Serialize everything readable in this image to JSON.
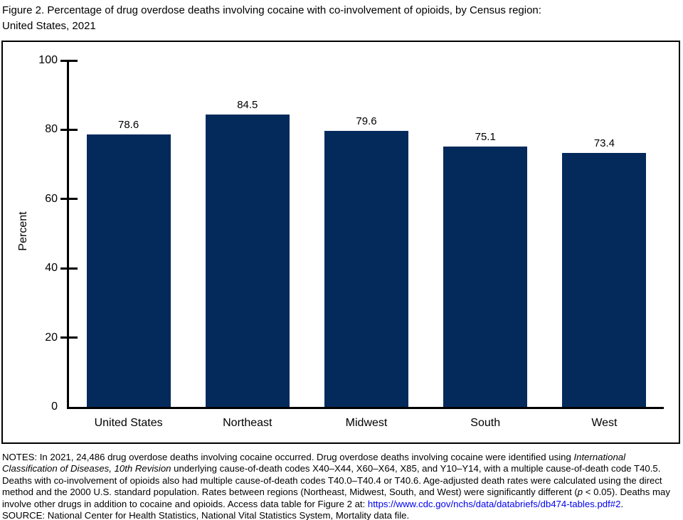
{
  "title": {
    "line1": "Figure 2. Percentage of drug overdose deaths involving cocaine with co-involvement of opioids, by Census region:",
    "line2": "United States, 2021"
  },
  "chart_data": {
    "type": "bar",
    "categories": [
      "United States",
      "Northeast",
      "Midwest",
      "South",
      "West"
    ],
    "values": [
      78.6,
      84.5,
      79.6,
      75.1,
      73.4
    ],
    "value_labels": [
      "78.6",
      "84.5",
      "79.6",
      "75.1",
      "73.4"
    ],
    "title": "",
    "xlabel": "",
    "ylabel": "Percent",
    "ylim": [
      0,
      100
    ],
    "yticks": [
      0,
      20,
      40,
      60,
      80,
      100
    ],
    "grid": false,
    "legend": "none",
    "bar_color": "#042a5c"
  },
  "notes": {
    "part1": "NOTES: In 2021, 24,486 drug overdose deaths involving cocaine occurred. Drug overdose deaths involving cocaine were identified using ",
    "italic1": "International Classification of Diseases, 10th Revision",
    "part2": " underlying cause-of-death codes X40–X44, X60–X64, X85, and Y10–Y14, with a multiple cause-of-death code T40.5. Deaths with co-involvement of opioids also had multiple cause-of-death codes T40.0–T40.4 or T40.6. Age-adjusted death rates were calculated using the direct method and the 2000 U.S. standard population. Rates between regions (Northeast, Midwest, South, and West) were significantly different (",
    "italic2": "p",
    "part3": " < 0.05). Deaths may involve other drugs in addition to cocaine and opioids. Access data table for Figure 2 at: ",
    "link": "https://www.cdc.gov/nchs/data/databriefs/db474-tables.pdf#2",
    "part4": ".",
    "source": "SOURCE: National Center for Health Statistics, National Vital Statistics System, Mortality data file."
  }
}
